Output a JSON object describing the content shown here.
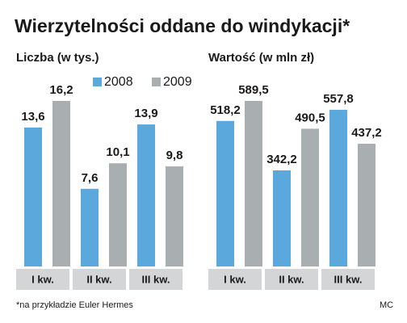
{
  "title": "Wierzytelności oddane do windykacji*",
  "footnote": "*na przykładzie Euler Hermes",
  "credit": "MC",
  "chart_data": [
    {
      "type": "bar",
      "title": "Liczba (w tys.)",
      "categories": [
        "I kw.",
        "II kw.",
        "III kw."
      ],
      "legend": true,
      "series": [
        {
          "name": "2008",
          "color": "#5ba8dc",
          "values": [
            13.6,
            7.6,
            13.9
          ],
          "value_labels": [
            "13,6",
            "7,6",
            "13,9"
          ]
        },
        {
          "name": "2009",
          "color": "#a9aeb1",
          "values": [
            16.2,
            10.1,
            9.8
          ],
          "value_labels": [
            "16,2",
            "10,1",
            "9,8"
          ]
        }
      ]
    },
    {
      "type": "bar",
      "title": "Wartość (w mln zł)",
      "categories": [
        "I kw.",
        "II kw.",
        "III kw."
      ],
      "legend": false,
      "series": [
        {
          "color": "#5ba8dc",
          "values": [
            518.2,
            342.2,
            557.8
          ],
          "value_labels": [
            "518,2",
            "342,2",
            "557,8"
          ]
        },
        {
          "color": "#a9aeb1",
          "values": [
            589.5,
            490.5,
            437.2
          ],
          "value_labels": [
            "589,5",
            "490,5",
            "437,2"
          ]
        }
      ]
    }
  ]
}
